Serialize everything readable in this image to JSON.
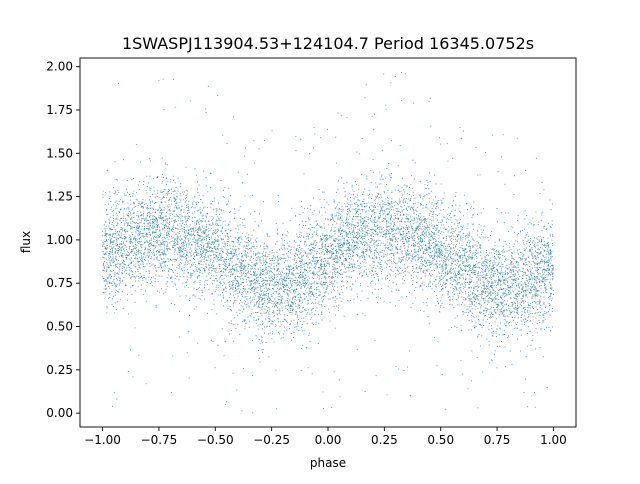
{
  "chart_data": {
    "type": "scatter",
    "title": "1SWASPJ113904.53+124104.7 Period 16345.0752s",
    "xlabel": "phase",
    "ylabel": "flux",
    "xlim": [
      -1.1,
      1.1
    ],
    "ylim": [
      -0.08,
      2.05
    ],
    "xticks": [
      -1.0,
      -0.75,
      -0.5,
      -0.25,
      0.0,
      0.25,
      0.5,
      0.75,
      1.0
    ],
    "xtick_labels": [
      "−1.00",
      "−0.75",
      "−0.50",
      "−0.25",
      "0.00",
      "0.25",
      "0.50",
      "0.75",
      "1.00"
    ],
    "yticks": [
      0.0,
      0.25,
      0.5,
      0.75,
      1.0,
      1.25,
      1.5,
      1.75,
      2.0
    ],
    "ytick_labels": [
      "0.00",
      "0.25",
      "0.50",
      "0.75",
      "1.00",
      "1.25",
      "1.50",
      "1.75",
      "2.00"
    ],
    "grid": false,
    "marker_color": "#1f77b4",
    "series": [
      {
        "x_range": [
          -1.0,
          1.0
        ],
        "trend": {
          "phase": [
            -1.0,
            -0.9,
            -0.8,
            -0.7,
            -0.6,
            -0.5,
            -0.4,
            -0.3,
            -0.2,
            -0.1,
            0.0,
            0.1,
            0.2,
            0.3,
            0.4,
            0.5,
            0.6,
            0.7,
            0.8,
            0.9,
            1.0
          ],
          "flux": [
            0.92,
            0.98,
            1.03,
            1.05,
            1.0,
            0.93,
            0.84,
            0.76,
            0.72,
            0.8,
            0.92,
            1.0,
            1.04,
            1.05,
            1.0,
            0.92,
            0.83,
            0.75,
            0.72,
            0.78,
            0.85
          ]
        },
        "scatter_sd": 0.15,
        "point_count": 9000
      }
    ]
  }
}
